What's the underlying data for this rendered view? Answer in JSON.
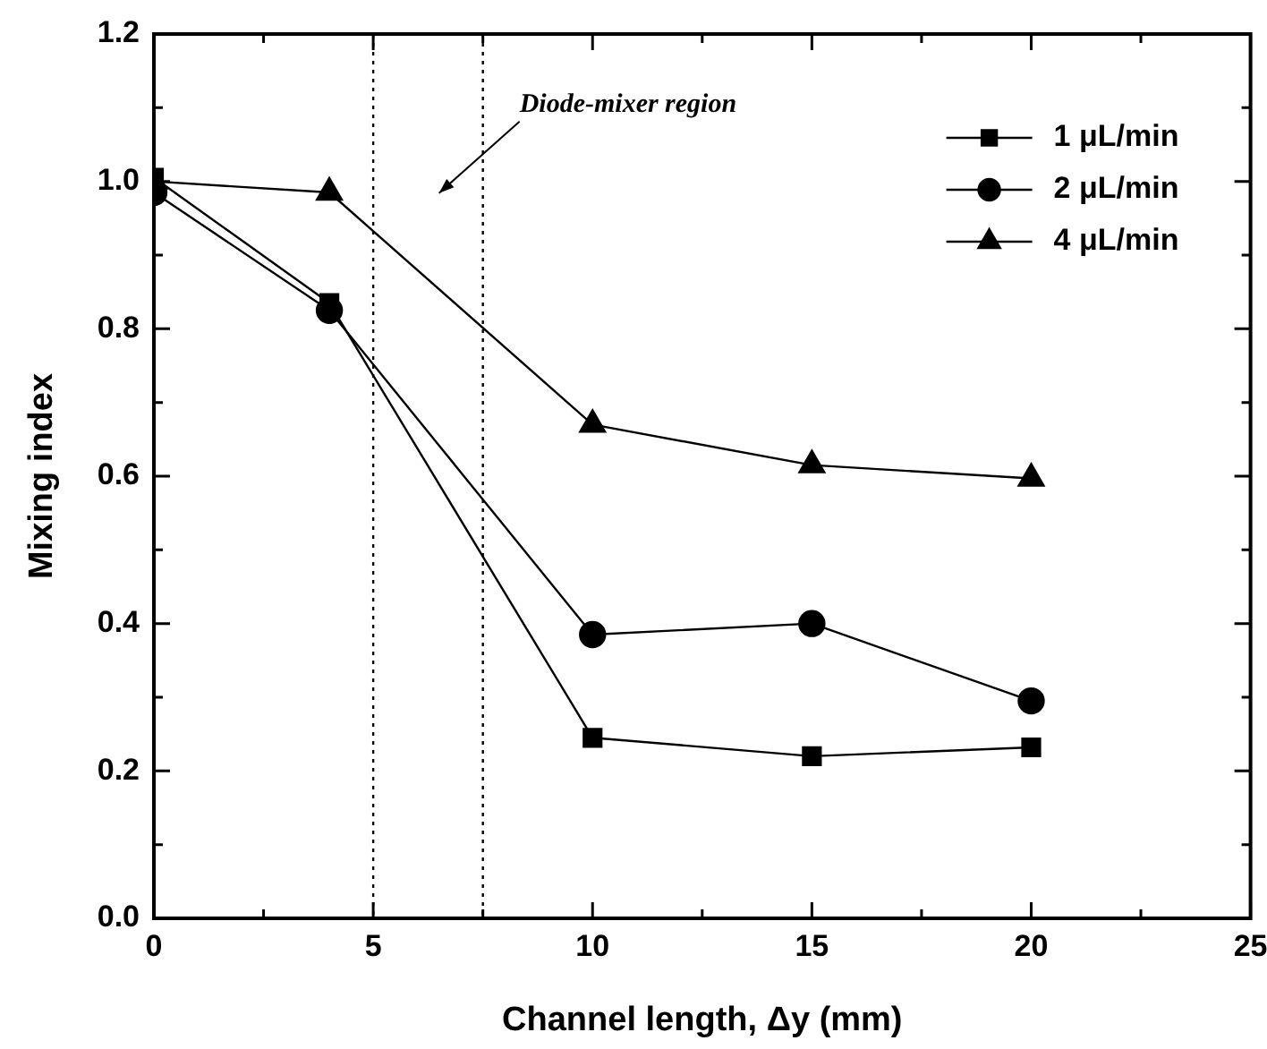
{
  "chart_data": {
    "type": "line",
    "xlabel": "Channel length, Δy (mm)",
    "ylabel": "Mixing index",
    "x": [
      0,
      4,
      10,
      15,
      20
    ],
    "series": [
      {
        "name": "1 μL/min",
        "color": "#000000",
        "marker": "square",
        "values": [
          1.005,
          0.835,
          0.245,
          0.22,
          0.232
        ]
      },
      {
        "name": "2 μL/min",
        "color": "#000000",
        "marker": "circle",
        "values": [
          0.985,
          0.825,
          0.385,
          0.4,
          0.295
        ]
      },
      {
        "name": "4 μL/min",
        "color": "#000000",
        "marker": "triangle",
        "values": [
          1.0,
          0.985,
          0.67,
          0.615,
          0.597
        ]
      }
    ],
    "xlim": [
      0,
      25
    ],
    "xticks": [
      0,
      {
        "value": 2.5,
        "label": null
      },
      5,
      {
        "value": 7.5,
        "label": null
      },
      10,
      {
        "value": 12.5,
        "label": null
      },
      15,
      {
        "value": 17.5,
        "label": null
      },
      20,
      {
        "value": 22.5,
        "label": null
      },
      25
    ],
    "ylim": [
      0,
      1.2
    ],
    "yticks": [
      {
        "value": 0,
        "label": "0.0"
      },
      {
        "value": 0.1,
        "label": null
      },
      {
        "value": 0.2,
        "label": "0.2"
      },
      {
        "value": 0.3,
        "label": null
      },
      {
        "value": 0.4,
        "label": "0.4"
      },
      {
        "value": 0.5,
        "label": null
      },
      {
        "value": 0.6,
        "label": "0.6"
      },
      {
        "value": 0.7,
        "label": null
      },
      {
        "value": 0.8,
        "label": "0.8"
      },
      {
        "value": 0.9,
        "label": null
      },
      {
        "value": 1.0,
        "label": "1.0"
      },
      {
        "value": 1.1,
        "label": null
      },
      {
        "value": 1.2,
        "label": "1.2"
      }
    ],
    "ref_lines": [
      {
        "axis": "x",
        "value": 5,
        "color": "#000000",
        "line_style": "dotted"
      },
      {
        "axis": "x",
        "value": 7.5,
        "color": "#000000",
        "line_style": "dotted"
      }
    ],
    "annotations": [
      "Diode-mixer region"
    ],
    "grid": false,
    "legend": "top right",
    "line_style": "solid"
  }
}
